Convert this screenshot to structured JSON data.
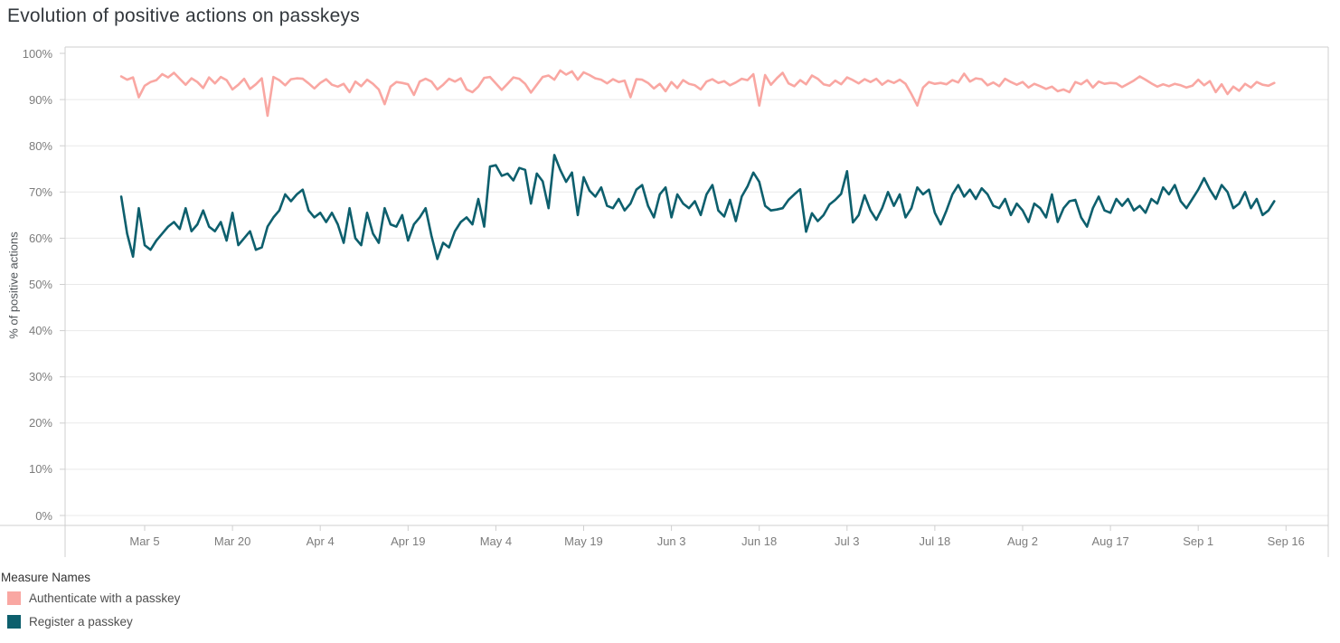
{
  "title": "Evolution of positive actions on passkeys",
  "colors": {
    "authenticate_line": "#F9A7A2",
    "register_line": "#0D5F6D",
    "gridline": "#E9E9E9",
    "axis_border": "#CFCFCF",
    "tick_label": "#7C7C7C",
    "title_text": "#32373C",
    "legend_text": "#4E4E4E"
  },
  "legend": {
    "title": "Measure Names",
    "items": [
      {
        "label": "Authenticate with a passkey",
        "color": "#F9A7A2"
      },
      {
        "label": "Register a passkey",
        "color": "#0D5F6D"
      }
    ]
  },
  "chart_data": {
    "type": "line",
    "title": "Evolution of positive actions on passkeys",
    "xlabel": "",
    "ylabel": "% of positive actions",
    "ylim": [
      0,
      100
    ],
    "grid": true,
    "legend_position": "bottom-left",
    "x_unit": "days since Mar 1 (daily data, Mar 1 - Sep 14)",
    "x_domain": [
      -9.6,
      206.2
    ],
    "y_tick_values": [
      0,
      10,
      20,
      30,
      40,
      50,
      60,
      70,
      80,
      90,
      100
    ],
    "y_tick_labels": [
      "0%",
      "10%",
      "20%",
      "30%",
      "40%",
      "50%",
      "60%",
      "70%",
      "80%",
      "90%",
      "100%"
    ],
    "x_tick_days": [
      4,
      19,
      34,
      49,
      64,
      79,
      94,
      109,
      124,
      139,
      154,
      169,
      184,
      199
    ],
    "x_tick_labels": [
      "Mar 5",
      "Mar 20",
      "Apr 4",
      "Apr 19",
      "May 4",
      "May 19",
      "Jun 3",
      "Jun 18",
      "Jul 3",
      "Jul 18",
      "Aug 2",
      "Aug 17",
      "Sep 1",
      "Sep 16"
    ],
    "series": [
      {
        "name": "Authenticate with a passkey",
        "color": "#F9A7A2",
        "start_day": 0,
        "values": [
          95,
          94.3,
          94.8,
          90.5,
          93,
          93.8,
          94.2,
          95.5,
          94.8,
          95.8,
          94.5,
          93.2,
          94.6,
          93.8,
          92.5,
          94.8,
          93.5,
          94.9,
          94.2,
          92.2,
          93.2,
          94.5,
          92.3,
          93.3,
          94.6,
          86.5,
          94.9,
          94.2,
          93.1,
          94.4,
          94.6,
          94.5,
          93.5,
          92.4,
          93.6,
          94.4,
          93.2,
          92.8,
          93.4,
          91.6,
          93.9,
          92.9,
          94.3,
          93.4,
          92.2,
          89,
          92.8,
          93.8,
          93.6,
          93.3,
          91,
          93.9,
          94.5,
          93.9,
          92.2,
          93.2,
          94.5,
          93.9,
          94.6,
          92.2,
          91.6,
          92.8,
          94.7,
          94.9,
          93.5,
          92.1,
          93.4,
          94.8,
          94.5,
          93.4,
          91.5,
          93.2,
          94.9,
          95.2,
          94.3,
          96.3,
          95.4,
          96.1,
          94.3,
          95.9,
          95.3,
          94.6,
          94.3,
          93.5,
          94.4,
          93.8,
          94.1,
          90.5,
          94.4,
          94.3,
          93.6,
          92.4,
          93.4,
          91.8,
          93.8,
          92.5,
          94.2,
          93.4,
          93.1,
          92.2,
          93.9,
          94.4,
          93.6,
          94,
          93.1,
          93.7,
          94.5,
          94.2,
          95.5,
          88.7,
          95.3,
          93.2,
          94.6,
          95.8,
          93.5,
          92.9,
          94.2,
          93.3,
          95.2,
          94.5,
          93.3,
          93,
          94.1,
          93.3,
          94.8,
          94.2,
          93.5,
          94.4,
          93.8,
          94.5,
          93.2,
          94.1,
          93.6,
          94.3,
          93.4,
          91.2,
          88.7,
          92.6,
          93.8,
          93.4,
          93.6,
          93.3,
          94.2,
          93.7,
          95.6,
          93.9,
          94.6,
          94.4,
          93.1,
          93.7,
          92.9,
          94.5,
          93.8,
          93.2,
          93.8,
          92.6,
          93.4,
          92.9,
          92.3,
          92.8,
          91.8,
          92.2,
          91.6,
          93.8,
          93.3,
          94.2,
          92.6,
          93.9,
          93.4,
          93.6,
          93.5,
          92.7,
          93.4,
          94.1,
          95,
          94.3,
          93.5,
          92.8,
          93.3,
          92.9,
          93.4,
          93.1,
          92.6,
          93,
          94.3,
          93.1,
          94,
          91.6,
          93.3,
          91.2,
          92.8,
          91.9,
          93.4,
          92.6,
          93.8,
          93.2,
          93,
          93.6
        ]
      },
      {
        "name": "Register a passkey",
        "color": "#0D5F6D",
        "start_day": 0,
        "values": [
          69,
          61,
          56,
          66.5,
          58.5,
          57.5,
          59.5,
          61,
          62.5,
          63.5,
          62,
          66.5,
          61.5,
          63,
          66,
          62.5,
          61.5,
          63.5,
          59.5,
          65.5,
          58.5,
          60,
          61.5,
          57.5,
          58,
          62.5,
          64.5,
          66,
          69.5,
          68,
          69.5,
          70.5,
          66,
          64.5,
          65.5,
          63.5,
          65.5,
          63,
          59,
          66.5,
          60,
          58.5,
          65.5,
          61,
          59,
          66.5,
          63,
          62.5,
          65,
          59.5,
          63,
          64.5,
          66.5,
          60.5,
          55.5,
          59,
          58,
          61.5,
          63.5,
          64.5,
          63,
          68.5,
          62.5,
          75.5,
          75.8,
          73.5,
          74,
          72.5,
          75.2,
          74.8,
          67.5,
          74,
          72.3,
          66.5,
          78,
          74.8,
          72.2,
          74.2,
          65,
          73.2,
          70.3,
          69,
          71,
          67,
          66.5,
          68.5,
          66,
          67.5,
          70.5,
          71.5,
          67,
          64.5,
          69.5,
          71,
          64.5,
          69.5,
          67.5,
          66.5,
          68,
          65,
          69.5,
          71.5,
          66,
          64.7,
          68.3,
          63.7,
          69,
          71.2,
          74.2,
          72.2,
          67,
          66,
          66.2,
          66.5,
          68.3,
          69.5,
          70.6,
          61.4,
          65.4,
          63.7,
          65,
          67.3,
          68.3,
          69.6,
          74.5,
          63.4,
          65,
          69.3,
          66,
          64,
          66.5,
          70,
          67,
          69.5,
          64.5,
          66.5,
          71,
          69.5,
          70.5,
          65.5,
          63,
          66,
          69.5,
          71.5,
          69,
          70.5,
          68.5,
          70.8,
          69.5,
          67,
          66.5,
          68.5,
          65,
          67.5,
          66,
          63.5,
          67.5,
          66.5,
          64.5,
          69.5,
          63.5,
          66.5,
          68,
          68.3,
          64.5,
          62.5,
          66.5,
          69,
          66,
          65.5,
          68.5,
          67,
          68.5,
          66,
          67,
          65.5,
          68.5,
          67.5,
          71,
          69.5,
          71.5,
          68,
          66.5,
          68.5,
          70.5,
          73,
          70.5,
          68.5,
          71.5,
          70,
          66.5,
          67.5,
          70,
          66.5,
          68.5,
          65,
          66,
          68
        ]
      }
    ]
  }
}
